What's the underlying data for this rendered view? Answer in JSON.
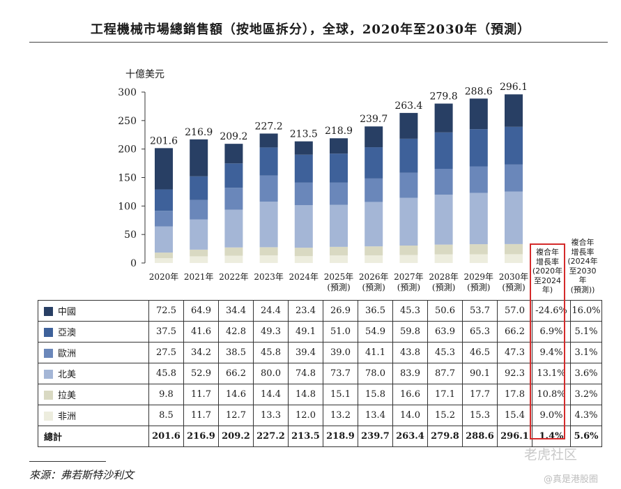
{
  "title": "工程機械市場總銷售額（按地區拆分），全球，2020年至2030年（預測）",
  "unit_label": "十億美元",
  "cagr_headers": {
    "first": [
      "複合年",
      "增長率",
      "(2020年",
      "至2024年)"
    ],
    "second": [
      "複合年",
      "增長率",
      "(2024年",
      "至2030年",
      "(預測))"
    ]
  },
  "source": "來源：弗若斯特沙利文",
  "watermark": {
    "primary": "老虎社区",
    "secondary": "@真是港股圈"
  },
  "highlight_color": "#d42a2a",
  "chart_data": {
    "type": "bar",
    "stacked": true,
    "categories": [
      "2020年",
      "2021年",
      "2022年",
      "2023年",
      "2024年",
      "2025年",
      "2026年",
      "2027年",
      "2028年",
      "2029年",
      "2030年"
    ],
    "category_sublabels": [
      "",
      "",
      "",
      "",
      "",
      "(預測)",
      "(預測)",
      "(預測)",
      "(預測)",
      "(預測)",
      "(預測)"
    ],
    "ylabel": "十億美元",
    "ylim": [
      0,
      300
    ],
    "yticks": [
      0,
      50,
      100,
      150,
      200,
      250,
      300
    ],
    "series": [
      {
        "name": "中國",
        "color": "#283f64",
        "values": [
          72.5,
          64.9,
          34.4,
          24.4,
          23.4,
          26.9,
          36.5,
          45.3,
          50.6,
          53.7,
          57.0
        ],
        "cagr_2020_2024": "-24.6%",
        "cagr_2024_2030": "16.0%"
      },
      {
        "name": "亞澳",
        "color": "#3e619a",
        "values": [
          37.5,
          41.6,
          42.8,
          49.3,
          49.1,
          51.0,
          54.9,
          59.8,
          63.9,
          65.3,
          66.2
        ],
        "cagr_2020_2024": "6.9%",
        "cagr_2024_2030": "5.1%"
      },
      {
        "name": "歐洲",
        "color": "#6a87ba",
        "values": [
          27.5,
          34.2,
          38.5,
          45.8,
          39.4,
          39.0,
          41.1,
          43.8,
          45.3,
          46.5,
          47.3
        ],
        "cagr_2020_2024": "9.4%",
        "cagr_2024_2030": "3.1%"
      },
      {
        "name": "北美",
        "color": "#a4b6d6",
        "values": [
          45.8,
          52.9,
          66.2,
          80.0,
          74.8,
          73.7,
          78.0,
          83.9,
          87.7,
          90.1,
          92.3
        ],
        "cagr_2020_2024": "13.1%",
        "cagr_2024_2030": "3.6%"
      },
      {
        "name": "拉美",
        "color": "#d9d9c2",
        "values": [
          9.8,
          11.7,
          14.6,
          14.4,
          14.8,
          15.1,
          15.8,
          16.6,
          17.1,
          17.7,
          17.8
        ],
        "cagr_2020_2024": "10.8%",
        "cagr_2024_2030": "3.2%"
      },
      {
        "name": "非洲",
        "color": "#ededde",
        "values": [
          8.5,
          11.7,
          12.7,
          13.3,
          12.0,
          13.2,
          13.4,
          14.0,
          15.2,
          15.3,
          15.4
        ],
        "cagr_2020_2024": "9.0%",
        "cagr_2024_2030": "4.3%"
      }
    ],
    "totals": {
      "name": "總計",
      "values": [
        201.6,
        216.9,
        209.2,
        227.2,
        213.5,
        218.9,
        239.7,
        263.4,
        279.8,
        288.6,
        296.1
      ],
      "labels": [
        "201.6",
        "216.9",
        "209.2",
        "227.2",
        "213.5",
        "218.9",
        "239.7",
        "263.4",
        "279.8",
        "288.6",
        "296.1"
      ],
      "cagr_2020_2024": "1.4%",
      "cagr_2024_2030": "5.6%"
    },
    "table_values": {
      "中國": [
        "72.5",
        "64.9",
        "34.4",
        "24.4",
        "23.4",
        "26.9",
        "36.5",
        "45.3",
        "50.6",
        "53.7",
        "57.0"
      ],
      "亞澳": [
        "37.5",
        "41.6",
        "42.8",
        "49.3",
        "49.1",
        "51.0",
        "54.9",
        "59.8",
        "63.9",
        "65.3",
        "66.2"
      ],
      "歐洲": [
        "27.5",
        "34.2",
        "38.5",
        "45.8",
        "39.4",
        "39.0",
        "41.1",
        "43.8",
        "45.3",
        "46.5",
        "47.3"
      ],
      "北美": [
        "45.8",
        "52.9",
        "66.2",
        "80.0",
        "74.8",
        "73.7",
        "78.0",
        "83.9",
        "87.7",
        "90.1",
        "92.3"
      ],
      "拉美": [
        "9.8",
        "11.7",
        "14.6",
        "14.4",
        "14.8",
        "15.1",
        "15.8",
        "16.6",
        "17.1",
        "17.7",
        "17.8"
      ],
      "非洲": [
        "8.5",
        "11.7",
        "12.7",
        "13.3",
        "12.0",
        "13.2",
        "13.4",
        "14.0",
        "15.2",
        "15.3",
        "15.4"
      ]
    }
  }
}
